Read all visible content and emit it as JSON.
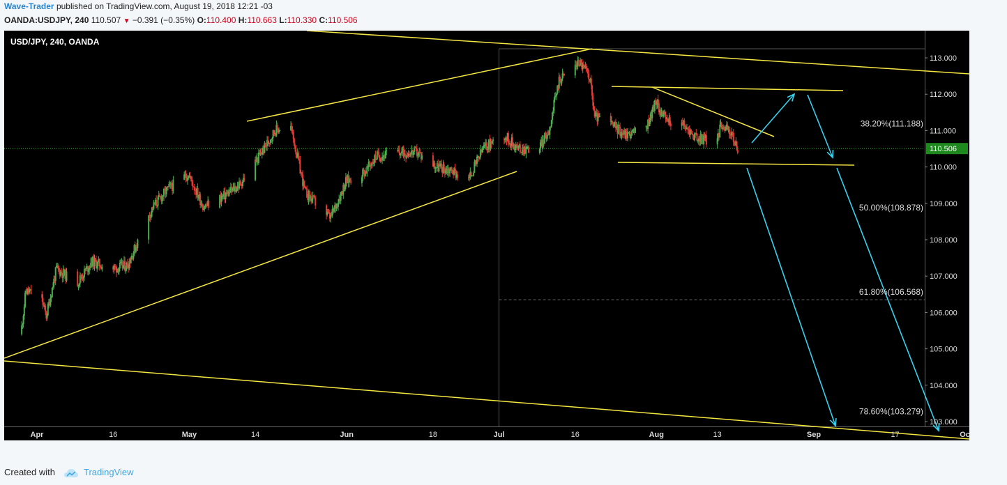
{
  "header": {
    "author": "Wave-Trader",
    "published_text": "published on TradingView.com, August 19, 2018 12:21 -03",
    "symbol": "OANDA:USDJPY, 240",
    "last": "110.507",
    "change": "−0.391 (−0.35%)",
    "o_label": "O:",
    "o_value": "110.400",
    "h_label": "H:",
    "h_value": "110.663",
    "l_label": "L:",
    "l_value": "110.330",
    "c_label": "C:",
    "c_value": "110.506"
  },
  "symbol_title": "USD/JPY, 240, OANDA",
  "footer": {
    "created_with": "Created with",
    "brand": "TradingView"
  },
  "colors": {
    "up": "#4caf50",
    "down": "#e53935",
    "trendline": "#f5e642",
    "arrow": "#35d3f0",
    "price_line": "#19c019",
    "price_tag": "#1e8a1e",
    "background": "#000000",
    "fib_text": "#dddddd"
  },
  "chart_data": {
    "type": "candlestick",
    "title": "USD/JPY, 240, OANDA",
    "ylim": [
      102.55,
      113.8
    ],
    "y_ticks": [
      "103.000",
      "104.000",
      "105.000",
      "106.000",
      "107.000",
      "108.000",
      "109.000",
      "110.000",
      "111.000",
      "112.000",
      "113.000"
    ],
    "x_ticks": [
      "Apr",
      "16",
      "May",
      "14",
      "Jun",
      "18",
      "Jul",
      "16",
      "Aug",
      "13",
      "Sep",
      "17",
      "Oct"
    ],
    "x_tick_dates": [
      "2018-04-01",
      "2018-04-16",
      "2018-05-01",
      "2018-05-14",
      "2018-06-01",
      "2018-06-18",
      "2018-07-01",
      "2018-07-16",
      "2018-08-01",
      "2018-08-13",
      "2018-09-01",
      "2018-09-17",
      "2018-10-01"
    ],
    "current_price": "110.506",
    "price_path": [
      [
        "2018-03-29",
        105.4
      ],
      [
        "2018-03-30",
        106.6
      ],
      [
        "2018-04-02",
        106.4
      ],
      [
        "2018-04-03",
        105.9
      ],
      [
        "2018-04-05",
        107.2
      ],
      [
        "2018-04-09",
        106.8
      ],
      [
        "2018-04-12",
        107.4
      ],
      [
        "2018-04-16",
        107.2
      ],
      [
        "2018-04-19",
        107.3
      ],
      [
        "2018-04-24",
        108.9
      ],
      [
        "2018-04-27",
        109.4
      ],
      [
        "2018-05-01",
        109.8
      ],
      [
        "2018-05-04",
        108.9
      ],
      [
        "2018-05-08",
        109.2
      ],
      [
        "2018-05-11",
        109.5
      ],
      [
        "2018-05-15",
        110.3
      ],
      [
        "2018-05-18",
        111.0
      ],
      [
        "2018-05-21",
        111.2
      ],
      [
        "2018-05-24",
        109.3
      ],
      [
        "2018-05-29",
        108.6
      ],
      [
        "2018-06-01",
        109.6
      ],
      [
        "2018-06-05",
        109.9
      ],
      [
        "2018-06-07",
        110.3
      ],
      [
        "2018-06-12",
        110.4
      ],
      [
        "2018-06-15",
        110.4
      ],
      [
        "2018-06-19",
        110.0
      ],
      [
        "2018-06-22",
        109.9
      ],
      [
        "2018-06-25",
        109.6
      ],
      [
        "2018-06-28",
        110.5
      ],
      [
        "2018-07-02",
        110.9
      ],
      [
        "2018-07-05",
        110.5
      ],
      [
        "2018-07-09",
        110.5
      ],
      [
        "2018-07-11",
        111.0
      ],
      [
        "2018-07-13",
        112.4
      ],
      [
        "2018-07-17",
        112.9
      ],
      [
        "2018-07-19",
        112.5
      ],
      [
        "2018-07-20",
        111.4
      ],
      [
        "2018-07-23",
        111.2
      ],
      [
        "2018-07-26",
        110.9
      ],
      [
        "2018-07-30",
        111.0
      ],
      [
        "2018-08-01",
        111.8
      ],
      [
        "2018-08-03",
        111.3
      ],
      [
        "2018-08-06",
        111.2
      ],
      [
        "2018-08-09",
        110.8
      ],
      [
        "2018-08-13",
        110.7
      ],
      [
        "2018-08-14",
        111.2
      ],
      [
        "2018-08-16",
        110.9
      ],
      [
        "2018-08-17",
        110.5
      ]
    ],
    "fib_levels": [
      {
        "label": "38.20%(111.188)",
        "value": 111.188
      },
      {
        "label": "50.00%(108.878)",
        "value": 108.878
      },
      {
        "label": "61.80%(106.568)",
        "value": 106.568
      },
      {
        "label": "78.60%(103.279)",
        "value": 103.279
      }
    ]
  }
}
